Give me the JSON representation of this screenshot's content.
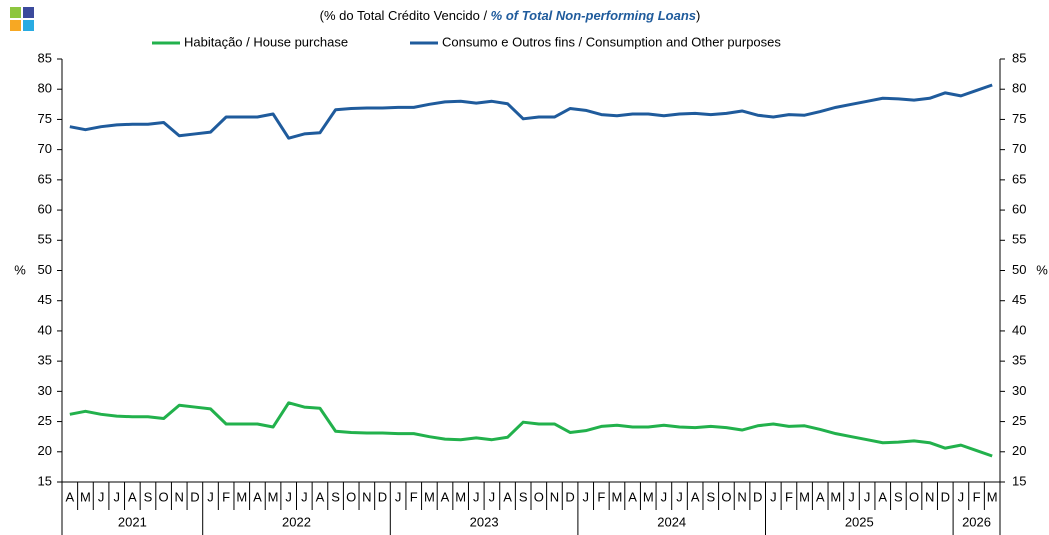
{
  "chart_data": {
    "type": "line",
    "title_parts": [
      "(% do Total  Crédito Vencido / ",
      "% of Total Non-performing Loans",
      ")"
    ],
    "y_label": "%",
    "y2_label": "%",
    "categories": [
      "A",
      "M",
      "J",
      "J",
      "A",
      "S",
      "O",
      "N",
      "D",
      "J",
      "F",
      "M",
      "A",
      "M",
      "J",
      "J",
      "A",
      "S",
      "O",
      "N",
      "D",
      "J",
      "F",
      "M",
      "A",
      "M",
      "J",
      "J",
      "A",
      "S",
      "O",
      "N",
      "D",
      "J",
      "F",
      "M",
      "A",
      "M",
      "J",
      "J",
      "A",
      "S",
      "O",
      "N",
      "D",
      "J",
      "F",
      "M",
      "A",
      "M",
      "J",
      "J",
      "A",
      "S",
      "O",
      "N",
      "D",
      "J",
      "F",
      "M"
    ],
    "category_years": [
      "2021",
      "2021",
      "2021",
      "2021",
      "2021",
      "2021",
      "2021",
      "2021",
      "2021",
      "2022",
      "2022",
      "2022",
      "2022",
      "2022",
      "2022",
      "2022",
      "2022",
      "2022",
      "2022",
      "2022",
      "2022",
      "2023",
      "2023",
      "2023",
      "2023",
      "2023",
      "2023",
      "2023",
      "2023",
      "2023",
      "2023",
      "2023",
      "2023",
      "2024",
      "2024",
      "2024",
      "2024",
      "2024",
      "2024",
      "2024",
      "2024",
      "2024",
      "2024",
      "2024",
      "2024",
      "2025",
      "2025",
      "2025",
      "2025",
      "2025",
      "2025",
      "2025",
      "2025",
      "2025",
      "2025",
      "2025",
      "2025",
      "2026",
      "2026",
      "2026"
    ],
    "series": [
      {
        "name": "Habitação / House purchase",
        "color": "#22b14c",
        "values": [
          26.2,
          26.7,
          26.2,
          25.9,
          25.8,
          25.8,
          25.5,
          27.7,
          27.4,
          27.1,
          24.6,
          24.6,
          24.6,
          24.1,
          28.1,
          27.4,
          27.2,
          23.4,
          23.2,
          23.1,
          23.1,
          23.0,
          23.0,
          22.5,
          22.1,
          22.0,
          22.3,
          22.0,
          22.4,
          24.9,
          24.6,
          24.6,
          23.2,
          23.5,
          24.2,
          24.4,
          24.1,
          24.1,
          24.4,
          24.1,
          24.0,
          24.2,
          24.0,
          23.6,
          24.3,
          24.6,
          24.2,
          24.3,
          23.7,
          23.0,
          22.5,
          22.0,
          21.5,
          21.6,
          21.8,
          21.5,
          20.6,
          21.1,
          20.2,
          19.3
        ]
      },
      {
        "name": "Consumo e Outros fins / Consumption and Other purposes",
        "color": "#1f5b9c",
        "values": [
          73.8,
          73.3,
          73.8,
          74.1,
          74.2,
          74.2,
          74.5,
          72.3,
          72.6,
          72.9,
          75.4,
          75.4,
          75.4,
          75.9,
          71.9,
          72.6,
          72.8,
          76.6,
          76.8,
          76.9,
          76.9,
          77.0,
          77.0,
          77.5,
          77.9,
          78.0,
          77.7,
          78.0,
          77.6,
          75.1,
          75.4,
          75.4,
          76.8,
          76.5,
          75.8,
          75.6,
          75.9,
          75.9,
          75.6,
          75.9,
          76.0,
          75.8,
          76.0,
          76.4,
          75.7,
          75.4,
          75.8,
          75.7,
          76.3,
          77.0,
          77.5,
          78.0,
          78.5,
          78.4,
          78.2,
          78.5,
          79.4,
          78.9,
          79.8,
          80.7
        ]
      }
    ],
    "ylim": [
      15,
      85
    ],
    "yticks": [
      15,
      20,
      25,
      30,
      35,
      40,
      45,
      50,
      55,
      60,
      65,
      70,
      75,
      80,
      85
    ],
    "y2lim": [
      15,
      85
    ],
    "y2ticks": [
      15,
      20,
      25,
      30,
      35,
      40,
      45,
      50,
      55,
      60,
      65,
      70,
      75,
      80,
      85
    ],
    "grid": false,
    "legend": "top"
  }
}
